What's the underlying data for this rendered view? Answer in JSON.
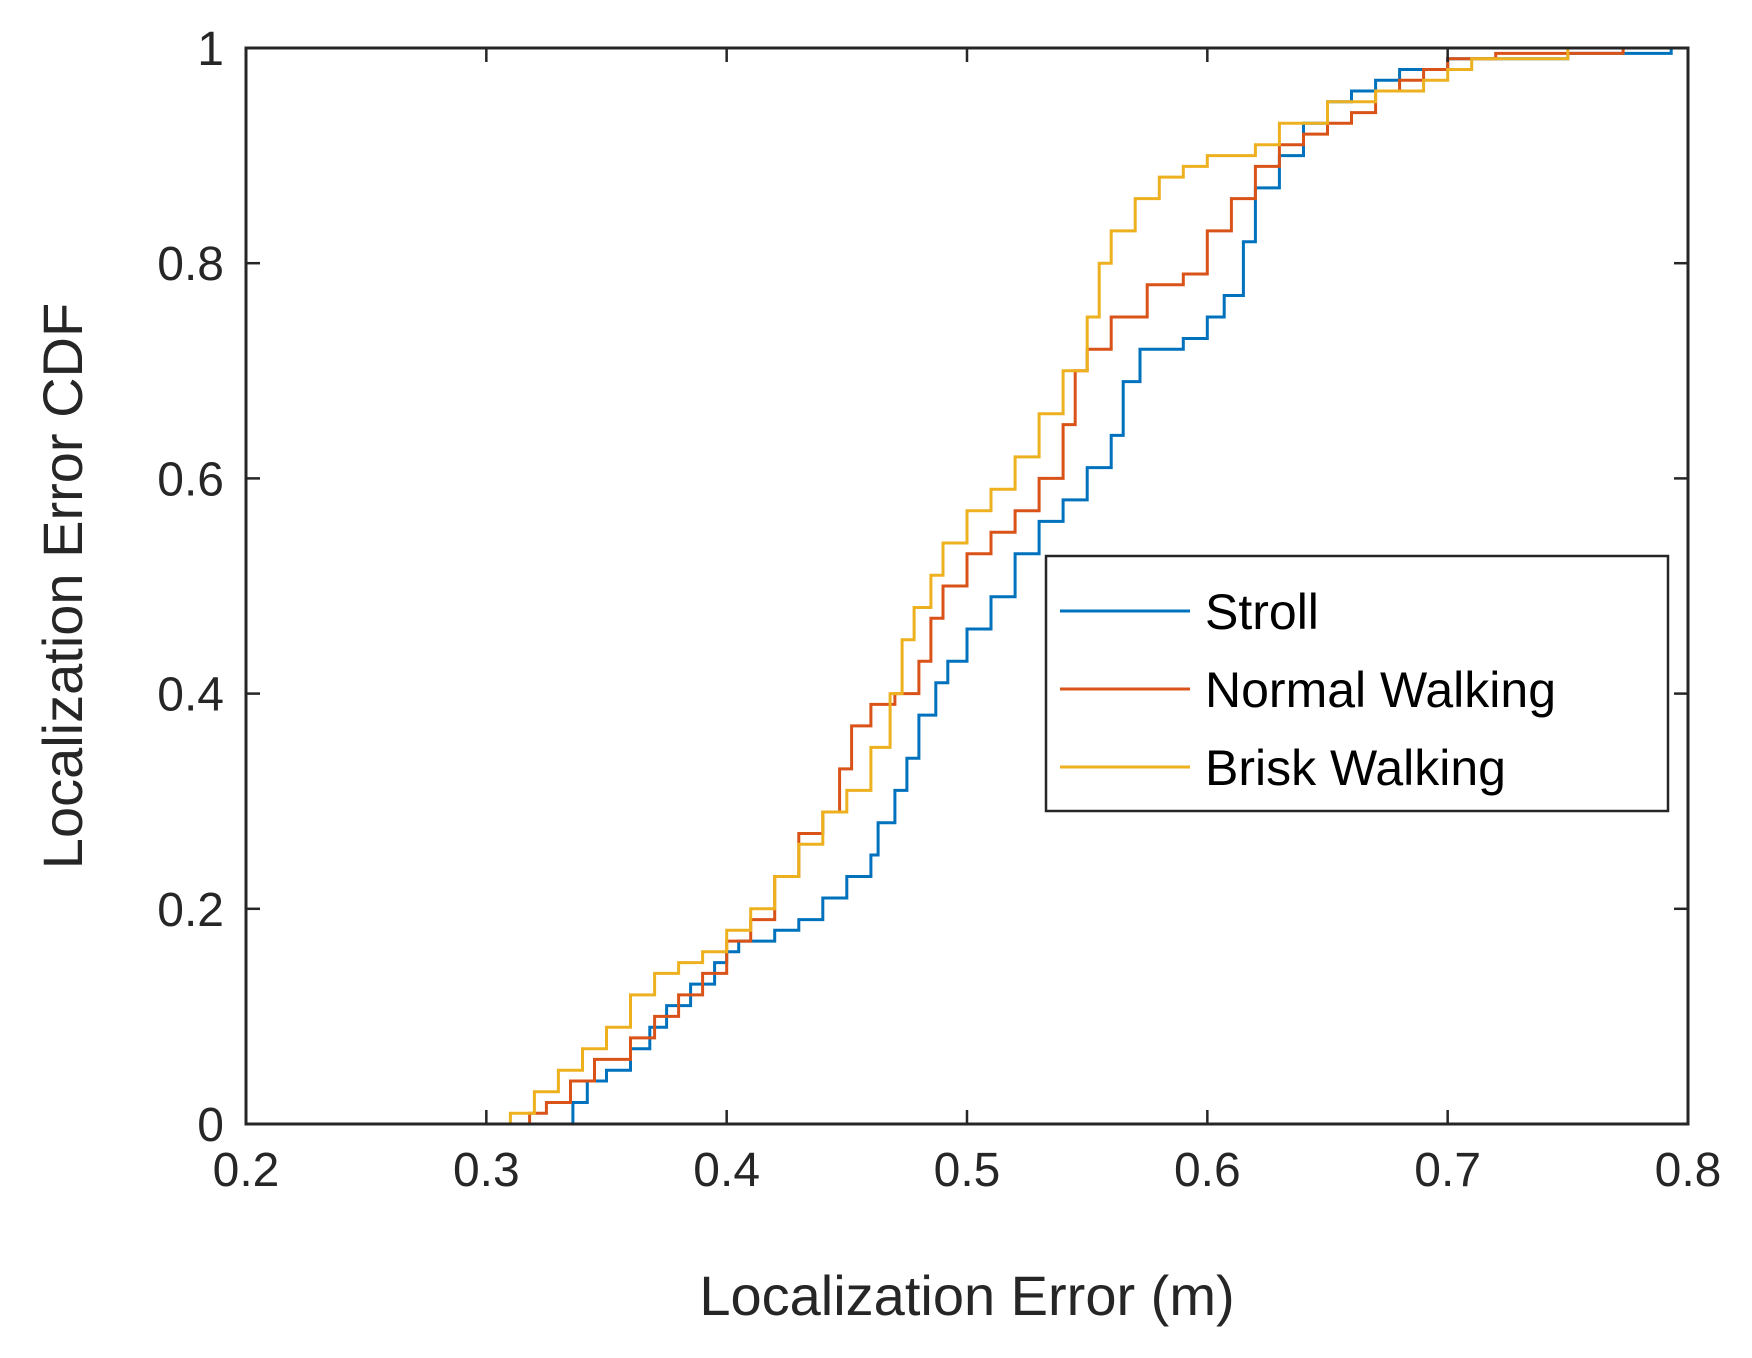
{
  "chart_data": {
    "type": "line",
    "title": "",
    "xlabel": "Localization Error (m)",
    "ylabel": "Localization Error CDF",
    "xlim": [
      0.2,
      0.8
    ],
    "ylim": [
      0,
      1
    ],
    "x_ticks": [
      0.2,
      0.3,
      0.4,
      0.5,
      0.6,
      0.7,
      0.8
    ],
    "x_tick_labels": [
      "0.2",
      "0.3",
      "0.4",
      "0.5",
      "0.6",
      "0.7",
      "0.8"
    ],
    "y_ticks": [
      0,
      0.2,
      0.4,
      0.6,
      0.8,
      1
    ],
    "y_tick_labels": [
      "0",
      "0.2",
      "0.4",
      "0.6",
      "0.8",
      "1"
    ],
    "grid": false,
    "legend_position": "right-middle",
    "series": [
      {
        "name": "Stroll",
        "color": "#0072BD",
        "x": [
          0.33,
          0.336,
          0.342,
          0.35,
          0.36,
          0.368,
          0.375,
          0.385,
          0.395,
          0.4,
          0.405,
          0.42,
          0.43,
          0.44,
          0.45,
          0.46,
          0.463,
          0.47,
          0.475,
          0.48,
          0.487,
          0.492,
          0.5,
          0.51,
          0.52,
          0.53,
          0.54,
          0.55,
          0.56,
          0.565,
          0.572,
          0.58,
          0.59,
          0.6,
          0.607,
          0.615,
          0.62,
          0.63,
          0.64,
          0.65,
          0.66,
          0.67,
          0.68,
          0.7,
          0.75,
          0.793
        ],
        "y": [
          0,
          0.02,
          0.04,
          0.05,
          0.07,
          0.09,
          0.11,
          0.13,
          0.15,
          0.16,
          0.17,
          0.18,
          0.19,
          0.21,
          0.23,
          0.25,
          0.28,
          0.31,
          0.34,
          0.38,
          0.41,
          0.43,
          0.46,
          0.49,
          0.53,
          0.56,
          0.58,
          0.61,
          0.64,
          0.69,
          0.72,
          0.72,
          0.73,
          0.75,
          0.77,
          0.82,
          0.87,
          0.9,
          0.93,
          0.95,
          0.96,
          0.97,
          0.98,
          0.99,
          0.995,
          1.0
        ]
      },
      {
        "name": "Normal Walking",
        "color": "#D95319",
        "x": [
          0.31,
          0.318,
          0.325,
          0.335,
          0.345,
          0.36,
          0.37,
          0.38,
          0.39,
          0.4,
          0.41,
          0.42,
          0.43,
          0.44,
          0.447,
          0.452,
          0.46,
          0.47,
          0.48,
          0.485,
          0.49,
          0.5,
          0.51,
          0.52,
          0.53,
          0.54,
          0.545,
          0.55,
          0.56,
          0.575,
          0.59,
          0.6,
          0.61,
          0.62,
          0.63,
          0.64,
          0.65,
          0.66,
          0.67,
          0.68,
          0.69,
          0.7,
          0.72,
          0.773
        ],
        "y": [
          0,
          0.01,
          0.02,
          0.04,
          0.06,
          0.08,
          0.1,
          0.12,
          0.14,
          0.17,
          0.19,
          0.23,
          0.27,
          0.29,
          0.33,
          0.37,
          0.39,
          0.4,
          0.43,
          0.47,
          0.5,
          0.53,
          0.55,
          0.57,
          0.6,
          0.65,
          0.7,
          0.72,
          0.75,
          0.78,
          0.79,
          0.83,
          0.86,
          0.89,
          0.91,
          0.92,
          0.93,
          0.94,
          0.96,
          0.97,
          0.98,
          0.99,
          0.995,
          1.0
        ]
      },
      {
        "name": "Brisk Walking",
        "color": "#EDB120",
        "x": [
          0.273,
          0.31,
          0.32,
          0.33,
          0.34,
          0.35,
          0.36,
          0.37,
          0.38,
          0.39,
          0.4,
          0.41,
          0.42,
          0.43,
          0.44,
          0.45,
          0.46,
          0.468,
          0.473,
          0.478,
          0.485,
          0.49,
          0.5,
          0.51,
          0.52,
          0.53,
          0.54,
          0.55,
          0.555,
          0.56,
          0.57,
          0.58,
          0.59,
          0.6,
          0.61,
          0.62,
          0.63,
          0.65,
          0.66,
          0.67,
          0.68,
          0.69,
          0.7,
          0.71,
          0.75
        ],
        "y": [
          0,
          0.01,
          0.03,
          0.05,
          0.07,
          0.09,
          0.12,
          0.14,
          0.15,
          0.16,
          0.18,
          0.2,
          0.23,
          0.26,
          0.29,
          0.31,
          0.35,
          0.4,
          0.45,
          0.48,
          0.51,
          0.54,
          0.57,
          0.59,
          0.62,
          0.66,
          0.7,
          0.75,
          0.8,
          0.83,
          0.86,
          0.88,
          0.89,
          0.9,
          0.9,
          0.91,
          0.93,
          0.95,
          0.95,
          0.96,
          0.96,
          0.97,
          0.98,
          0.99,
          1.0
        ]
      }
    ]
  }
}
